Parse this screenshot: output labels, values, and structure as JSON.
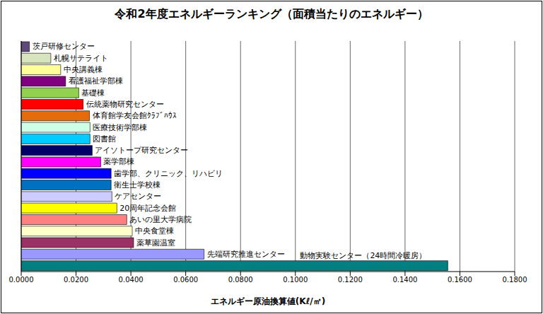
{
  "chart_data": {
    "type": "bar",
    "title": "令和2年度エネルギーランキング（面積当たりのエネルギー）",
    "x_label": "エネルギー原油換算値(Kℓ/㎡)",
    "orientation": "horizontal",
    "categories": [
      "茨戸研修センター",
      "札幌サテライト",
      "中央講義棟",
      "看護福祉学部棟",
      "基礎棟",
      "伝統薬物研究センター",
      "体育館学友会館ｸﾗﾌﾞﾊｳｽ",
      "医療技術学部棟",
      "図書館",
      "アイソトープ研究センター",
      "薬学部棟",
      "歯学部、クリニック、リハビリ",
      "衛生士学校棟",
      "ケアセンター",
      "20周年記念会館",
      "あいの里大学病院",
      "中央食堂棟",
      "薬草園温室",
      "先端研究推進センター",
      "動物実験センター（24時間冷暖房）"
    ],
    "values": [
      0.003,
      0.0108,
      0.0144,
      0.0162,
      0.021,
      0.0226,
      0.0249,
      0.0251,
      0.0251,
      0.0259,
      0.029,
      0.0328,
      0.0328,
      0.0331,
      0.0349,
      0.0385,
      0.0405,
      0.041,
      0.0667,
      0.1556
    ],
    "colors": [
      "#604a7b",
      "#d7e4bd",
      "#ffff99",
      "#800080",
      "#92d050",
      "#ff0000",
      "#e46c0a",
      "#ccffe6",
      "#00ccff",
      "#000066",
      "#ff00ff",
      "#0000ff",
      "#0070c0",
      "#ccccff",
      "#ffff00",
      "#ff8080",
      "#ffffcc",
      "#993366",
      "#9999ff",
      "#008080"
    ],
    "xlim": [
      0,
      0.18
    ],
    "xticks": [
      {
        "value": 0,
        "label": "0.0000"
      },
      {
        "value": 0.02,
        "label": "0.0200"
      },
      {
        "value": 0.04,
        "label": "0.0400"
      },
      {
        "value": 0.06,
        "label": "0.0600"
      },
      {
        "value": 0.08,
        "label": "0.0800"
      },
      {
        "value": 0.1,
        "label": "0.1000"
      },
      {
        "value": 0.12,
        "label": "0.1200"
      },
      {
        "value": 0.14,
        "label": "0.1400"
      },
      {
        "value": 0.16,
        "label": "0.1600"
      },
      {
        "value": 0.18,
        "label": "0.1800"
      }
    ],
    "grid": true,
    "tick_labels": "x"
  }
}
